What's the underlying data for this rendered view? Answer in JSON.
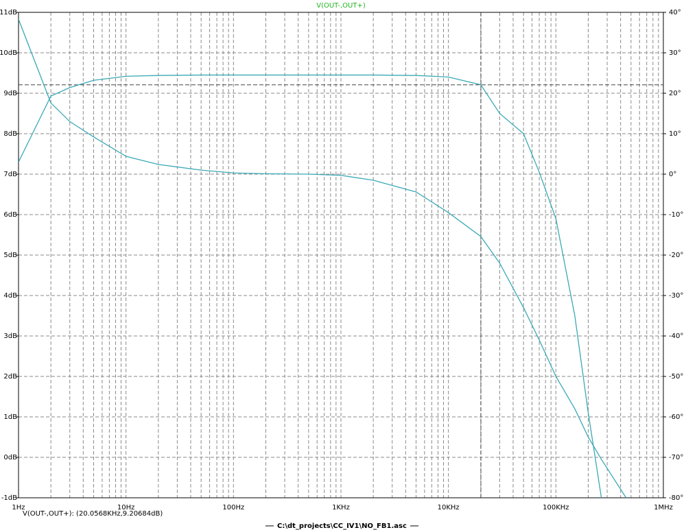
{
  "chart_data": {
    "type": "line",
    "title": "V(OUT-,OUT+)",
    "title_color": "#1fb51f",
    "x_scale": "log",
    "grid": true,
    "xlim": [
      1,
      1000000
    ],
    "xticks": [
      {
        "value": 1,
        "label": "1Hz"
      },
      {
        "value": 10,
        "label": "10Hz"
      },
      {
        "value": 100,
        "label": "100Hz"
      },
      {
        "value": 1000,
        "label": "1KHz"
      },
      {
        "value": 10000,
        "label": "10KHz"
      },
      {
        "value": 100000,
        "label": "100KHz"
      },
      {
        "value": 1000000,
        "label": "1MHz"
      }
    ],
    "xminorticks": [
      2,
      3,
      4,
      5,
      6,
      7,
      8,
      9,
      20,
      30,
      40,
      50,
      60,
      70,
      80,
      90,
      200,
      300,
      400,
      500,
      600,
      700,
      800,
      900,
      2000,
      3000,
      4000,
      5000,
      6000,
      7000,
      8000,
      9000,
      20000,
      30000,
      40000,
      50000,
      60000,
      70000,
      80000,
      90000,
      200000,
      300000,
      400000,
      500000,
      600000,
      700000,
      800000,
      900000
    ],
    "ylim": [
      -1,
      11
    ],
    "yticks": [
      {
        "value": -1,
        "label": "-1dB"
      },
      {
        "value": 0,
        "label": "0dB"
      },
      {
        "value": 1,
        "label": "1dB"
      },
      {
        "value": 2,
        "label": "2dB"
      },
      {
        "value": 3,
        "label": "3dB"
      },
      {
        "value": 4,
        "label": "4dB"
      },
      {
        "value": 5,
        "label": "5dB"
      },
      {
        "value": 6,
        "label": "6dB"
      },
      {
        "value": 7,
        "label": "7dB"
      },
      {
        "value": 8,
        "label": "8dB"
      },
      {
        "value": 9,
        "label": "9dB"
      },
      {
        "value": 10,
        "label": "10dB"
      },
      {
        "value": 11,
        "label": "11dB"
      }
    ],
    "y2lim": [
      -80,
      40
    ],
    "y2ticks": [
      {
        "value": -80,
        "label": "-80°"
      },
      {
        "value": -70,
        "label": "-70°"
      },
      {
        "value": -60,
        "label": "-60°"
      },
      {
        "value": -50,
        "label": "-50°"
      },
      {
        "value": -40,
        "label": "-40°"
      },
      {
        "value": -30,
        "label": "-30°"
      },
      {
        "value": -20,
        "label": "-20°"
      },
      {
        "value": -10,
        "label": "-10°"
      },
      {
        "value": 0,
        "label": "0°"
      },
      {
        "value": 10,
        "label": "10°"
      },
      {
        "value": 20,
        "label": "20°"
      },
      {
        "value": 30,
        "label": "30°"
      },
      {
        "value": 40,
        "label": "40°"
      }
    ],
    "x": [
      1,
      2,
      3,
      5,
      10,
      20,
      50,
      100,
      200,
      500,
      1000,
      2000,
      5000,
      10000,
      20000,
      30000,
      50000,
      70000,
      100000,
      150000,
      200000,
      265000,
      450000
    ],
    "series": [
      {
        "color": "#3aa9b5",
        "values": [
          7.3,
          8.93,
          9.14,
          9.32,
          9.42,
          9.44,
          9.45,
          9.45,
          9.45,
          9.45,
          9.45,
          9.45,
          9.44,
          9.4,
          9.21,
          8.5,
          8.0,
          7.05,
          5.9,
          3.5,
          1.1,
          -1.0,
          null
        ]
      },
      {
        "color": "#3aa9b5",
        "axis": "y2",
        "values": [
          38.3,
          17.6,
          13,
          9.2,
          4.4,
          2.4,
          1,
          0.3,
          0.1,
          0,
          -0.3,
          -1.5,
          -4.4,
          -9.5,
          -15.4,
          -22,
          -33,
          -41,
          -50,
          -58,
          -65,
          -70.5,
          -80
        ]
      }
    ],
    "cursor": {
      "x": 20056.8,
      "y": 9.20684,
      "label": "V(OUT-,OUT+): (20.0568KHz,9.20684dB)"
    },
    "file": "C:\\dt_projects\\CC_IV1\\NO_FB1.asc"
  }
}
